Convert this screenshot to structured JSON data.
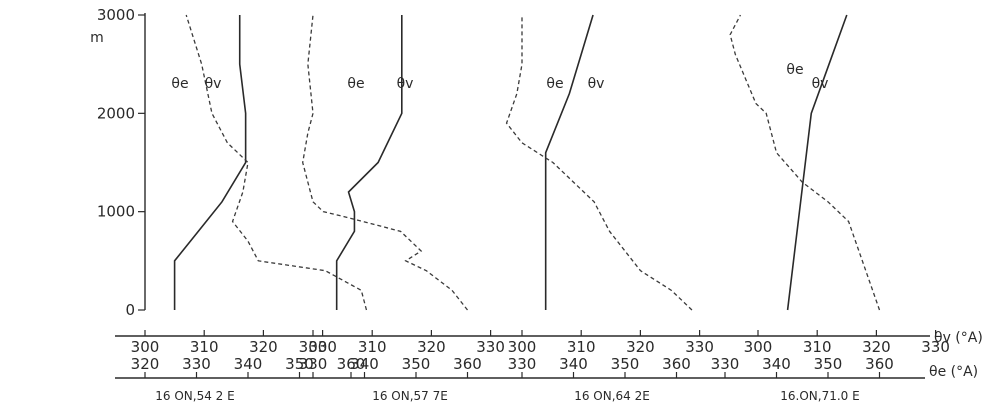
{
  "chart_data": {
    "type": "line",
    "y_axis": {
      "unit": "m",
      "ticks": [
        0,
        1000,
        2000,
        3000
      ],
      "tick_labels": [
        "0",
        "1000",
        "2000",
        "3000"
      ],
      "ylim": [
        0,
        3000
      ]
    },
    "x_axis_theta_v": {
      "label": "θv (°A)",
      "tick_labels": [
        "300",
        "310",
        "320",
        "330",
        "300",
        "310",
        "320",
        "330",
        "300",
        "310",
        "320",
        "330",
        "300",
        "310",
        "320",
        "330"
      ]
    },
    "x_axis_theta_e": {
      "label": "θe (°A)",
      "tick_labels": [
        "320",
        "330",
        "340",
        "350",
        "360",
        "330",
        "340",
        "350",
        "360",
        "330",
        "340",
        "350",
        "360",
        "330",
        "340",
        "350",
        "360"
      ]
    },
    "panels": [
      {
        "location": "16 ON,54 2 E",
        "theta_v_label": "θv",
        "theta_e_label": "θe",
        "theta_v": {
          "height": [
            0,
            500,
            800,
            1100,
            1500,
            2000,
            2500,
            3000
          ],
          "value": [
            305,
            305,
            309,
            313,
            317,
            317,
            316,
            316
          ]
        },
        "theta_e": {
          "height": [
            0,
            200,
            400,
            500,
            700,
            900,
            1200,
            1500,
            1700,
            2000,
            2500,
            3000
          ],
          "value": [
            363,
            362,
            355,
            342,
            340,
            337,
            339,
            340,
            336,
            333,
            331,
            328
          ]
        }
      },
      {
        "location": "16 ON,57 7E",
        "theta_v_label": "θv",
        "theta_e_label": "θe",
        "theta_v": {
          "height": [
            0,
            500,
            800,
            1000,
            1200,
            1500,
            2000,
            2500,
            3000
          ],
          "value": [
            304,
            304,
            307,
            307,
            306,
            311,
            315,
            315,
            315
          ]
        },
        "theta_e": {
          "height": [
            0,
            200,
            400,
            500,
            600,
            800,
            950,
            1000,
            1100,
            1500,
            1800,
            2000,
            2500,
            3000
          ],
          "value": [
            360,
            357,
            352,
            348,
            351,
            347,
            336,
            332,
            330,
            328,
            329,
            330,
            329,
            330
          ]
        }
      },
      {
        "location": "16 ON,64 2E",
        "theta_v_label": "θv",
        "theta_e_label": "θe",
        "theta_v": {
          "height": [
            0,
            1000,
            1600,
            1900,
            2200,
            2600,
            3000
          ],
          "value": [
            304,
            304,
            304,
            306,
            308,
            310,
            312
          ]
        },
        "theta_e": {
          "height": [
            0,
            200,
            400,
            800,
            1100,
            1500,
            1700,
            1900,
            2200,
            2500,
            3000
          ],
          "value": [
            363,
            359,
            353,
            347,
            344,
            336,
            330,
            327,
            329,
            330,
            330
          ]
        }
      },
      {
        "location": "16.ON,71.0 E",
        "theta_v_label": "θv",
        "theta_e_label": "θe",
        "theta_v": {
          "height": [
            0,
            1000,
            2000,
            2500,
            3000
          ],
          "value": [
            305,
            307,
            309,
            312,
            315
          ]
        },
        "theta_e": {
          "height": [
            0,
            300,
            600,
            900,
            1100,
            1300,
            1600,
            2000,
            2100,
            2600,
            2800,
            3000
          ],
          "value": [
            360,
            358,
            356,
            354,
            350,
            345,
            340,
            338,
            336,
            332,
            331,
            333
          ]
        }
      }
    ]
  }
}
